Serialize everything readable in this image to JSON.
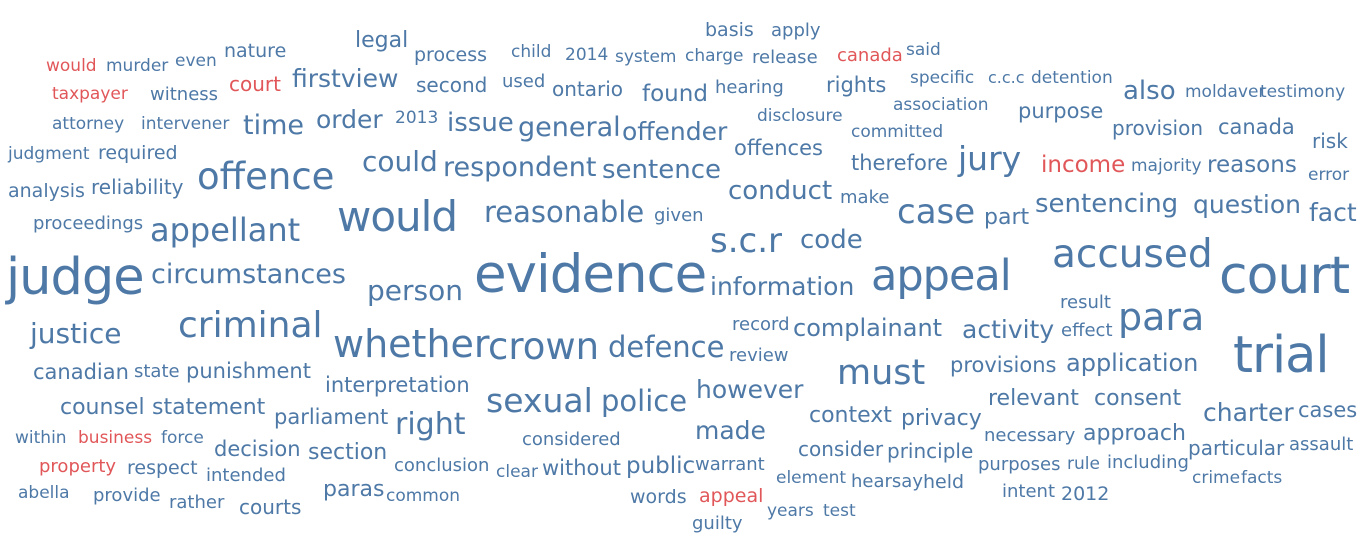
{
  "colors": {
    "blue": "#4e79a7",
    "red": "#e15759"
  },
  "words": [
    {
      "text": "would",
      "color": "red"
    },
    {
      "text": "murder",
      "color": "blue"
    },
    {
      "text": "even",
      "color": "blue"
    },
    {
      "text": "nature",
      "color": "blue"
    },
    {
      "text": "legal",
      "color": "blue"
    },
    {
      "text": "process",
      "color": "blue"
    },
    {
      "text": "child",
      "color": "blue"
    },
    {
      "text": "2014",
      "color": "blue"
    },
    {
      "text": "system",
      "color": "blue"
    },
    {
      "text": "charge",
      "color": "blue"
    },
    {
      "text": "basis",
      "color": "blue"
    },
    {
      "text": "apply",
      "color": "blue"
    },
    {
      "text": "release",
      "color": "blue"
    },
    {
      "text": "canada",
      "color": "red"
    },
    {
      "text": "said",
      "color": "blue"
    },
    {
      "text": "taxpayer",
      "color": "red"
    },
    {
      "text": "witness",
      "color": "blue"
    },
    {
      "text": "court",
      "color": "red"
    },
    {
      "text": "firstview",
      "color": "blue"
    },
    {
      "text": "second",
      "color": "blue"
    },
    {
      "text": "used",
      "color": "blue"
    },
    {
      "text": "ontario",
      "color": "blue"
    },
    {
      "text": "found",
      "color": "blue"
    },
    {
      "text": "hearing",
      "color": "blue"
    },
    {
      "text": "rights",
      "color": "blue"
    },
    {
      "text": "specific",
      "color": "blue"
    },
    {
      "text": "c.c.c",
      "color": "blue"
    },
    {
      "text": "detention",
      "color": "blue"
    },
    {
      "text": "also",
      "color": "blue"
    },
    {
      "text": "moldaver",
      "color": "blue"
    },
    {
      "text": "testimony",
      "color": "blue"
    },
    {
      "text": "attorney",
      "color": "blue"
    },
    {
      "text": "intervener",
      "color": "blue"
    },
    {
      "text": "time",
      "color": "blue"
    },
    {
      "text": "order",
      "color": "blue"
    },
    {
      "text": "2013",
      "color": "blue"
    },
    {
      "text": "issue",
      "color": "blue"
    },
    {
      "text": "general",
      "color": "blue"
    },
    {
      "text": "offender",
      "color": "blue"
    },
    {
      "text": "disclosure",
      "color": "blue"
    },
    {
      "text": "association",
      "color": "blue"
    },
    {
      "text": "committed",
      "color": "blue"
    },
    {
      "text": "purpose",
      "color": "blue"
    },
    {
      "text": "provision",
      "color": "blue"
    },
    {
      "text": "canada",
      "color": "blue"
    },
    {
      "text": "judgment",
      "color": "blue"
    },
    {
      "text": "required",
      "color": "blue"
    },
    {
      "text": "offences",
      "color": "blue"
    },
    {
      "text": "could",
      "color": "blue"
    },
    {
      "text": "respondent",
      "color": "blue"
    },
    {
      "text": "sentence",
      "color": "blue"
    },
    {
      "text": "therefore",
      "color": "blue"
    },
    {
      "text": "jury",
      "color": "blue"
    },
    {
      "text": "income",
      "color": "red"
    },
    {
      "text": "majority",
      "color": "blue"
    },
    {
      "text": "reasons",
      "color": "blue"
    },
    {
      "text": "risk",
      "color": "blue"
    },
    {
      "text": "error",
      "color": "blue"
    },
    {
      "text": "analysis",
      "color": "blue"
    },
    {
      "text": "reliability",
      "color": "blue"
    },
    {
      "text": "offence",
      "color": "blue"
    },
    {
      "text": "conduct",
      "color": "blue"
    },
    {
      "text": "make",
      "color": "blue"
    },
    {
      "text": "case",
      "color": "blue"
    },
    {
      "text": "part",
      "color": "blue"
    },
    {
      "text": "sentencing",
      "color": "blue"
    },
    {
      "text": "question",
      "color": "blue"
    },
    {
      "text": "fact",
      "color": "blue"
    },
    {
      "text": "proceedings",
      "color": "blue"
    },
    {
      "text": "appellant",
      "color": "blue"
    },
    {
      "text": "would",
      "color": "blue"
    },
    {
      "text": "reasonable",
      "color": "blue"
    },
    {
      "text": "given",
      "color": "blue"
    },
    {
      "text": "s.c.r",
      "color": "blue"
    },
    {
      "text": "code",
      "color": "blue"
    },
    {
      "text": "judge",
      "color": "blue"
    },
    {
      "text": "circumstances",
      "color": "blue"
    },
    {
      "text": "evidence",
      "color": "blue"
    },
    {
      "text": "information",
      "color": "blue"
    },
    {
      "text": "appeal",
      "color": "blue"
    },
    {
      "text": "accused",
      "color": "blue"
    },
    {
      "text": "court",
      "color": "blue"
    },
    {
      "text": "person",
      "color": "blue"
    },
    {
      "text": "result",
      "color": "blue"
    },
    {
      "text": "justice",
      "color": "blue"
    },
    {
      "text": "criminal",
      "color": "blue"
    },
    {
      "text": "whether",
      "color": "blue"
    },
    {
      "text": "crown",
      "color": "blue"
    },
    {
      "text": "defence",
      "color": "blue"
    },
    {
      "text": "record",
      "color": "blue"
    },
    {
      "text": "complainant",
      "color": "blue"
    },
    {
      "text": "activity",
      "color": "blue"
    },
    {
      "text": "effect",
      "color": "blue"
    },
    {
      "text": "para",
      "color": "blue"
    },
    {
      "text": "trial",
      "color": "blue"
    },
    {
      "text": "review",
      "color": "blue"
    },
    {
      "text": "canadian",
      "color": "blue"
    },
    {
      "text": "state",
      "color": "blue"
    },
    {
      "text": "punishment",
      "color": "blue"
    },
    {
      "text": "must",
      "color": "blue"
    },
    {
      "text": "provisions",
      "color": "blue"
    },
    {
      "text": "application",
      "color": "blue"
    },
    {
      "text": "interpretation",
      "color": "blue"
    },
    {
      "text": "however",
      "color": "blue"
    },
    {
      "text": "sexual",
      "color": "blue"
    },
    {
      "text": "police",
      "color": "blue"
    },
    {
      "text": "relevant",
      "color": "blue"
    },
    {
      "text": "consent",
      "color": "blue"
    },
    {
      "text": "counsel",
      "color": "blue"
    },
    {
      "text": "statement",
      "color": "blue"
    },
    {
      "text": "parliament",
      "color": "blue"
    },
    {
      "text": "right",
      "color": "blue"
    },
    {
      "text": "context",
      "color": "blue"
    },
    {
      "text": "privacy",
      "color": "blue"
    },
    {
      "text": "charter",
      "color": "blue"
    },
    {
      "text": "cases",
      "color": "blue"
    },
    {
      "text": "within",
      "color": "blue"
    },
    {
      "text": "business",
      "color": "red"
    },
    {
      "text": "force",
      "color": "blue"
    },
    {
      "text": "made",
      "color": "blue"
    },
    {
      "text": "approach",
      "color": "blue"
    },
    {
      "text": "decision",
      "color": "blue"
    },
    {
      "text": "considered",
      "color": "blue"
    },
    {
      "text": "consider",
      "color": "blue"
    },
    {
      "text": "principle",
      "color": "blue"
    },
    {
      "text": "necessary",
      "color": "blue"
    },
    {
      "text": "particular",
      "color": "blue"
    },
    {
      "text": "assault",
      "color": "blue"
    },
    {
      "text": "section",
      "color": "blue"
    },
    {
      "text": "property",
      "color": "red"
    },
    {
      "text": "respect",
      "color": "blue"
    },
    {
      "text": "intended",
      "color": "blue"
    },
    {
      "text": "conclusion",
      "color": "blue"
    },
    {
      "text": "clear",
      "color": "blue"
    },
    {
      "text": "without",
      "color": "blue"
    },
    {
      "text": "public",
      "color": "blue"
    },
    {
      "text": "warrant",
      "color": "blue"
    },
    {
      "text": "purposes",
      "color": "blue"
    },
    {
      "text": "rule",
      "color": "blue"
    },
    {
      "text": "including",
      "color": "blue"
    },
    {
      "text": "crime",
      "color": "blue"
    },
    {
      "text": "facts",
      "color": "blue"
    },
    {
      "text": "element",
      "color": "blue"
    },
    {
      "text": "hearsay",
      "color": "blue"
    },
    {
      "text": "held",
      "color": "blue"
    },
    {
      "text": "abella",
      "color": "blue"
    },
    {
      "text": "provide",
      "color": "blue"
    },
    {
      "text": "paras",
      "color": "blue"
    },
    {
      "text": "common",
      "color": "blue"
    },
    {
      "text": "words",
      "color": "blue"
    },
    {
      "text": "appeal",
      "color": "red"
    },
    {
      "text": "intent",
      "color": "blue"
    },
    {
      "text": "2012",
      "color": "blue"
    },
    {
      "text": "rather",
      "color": "blue"
    },
    {
      "text": "courts",
      "color": "blue"
    },
    {
      "text": "years",
      "color": "blue"
    },
    {
      "text": "test",
      "color": "blue"
    },
    {
      "text": "guilty",
      "color": "blue"
    }
  ]
}
